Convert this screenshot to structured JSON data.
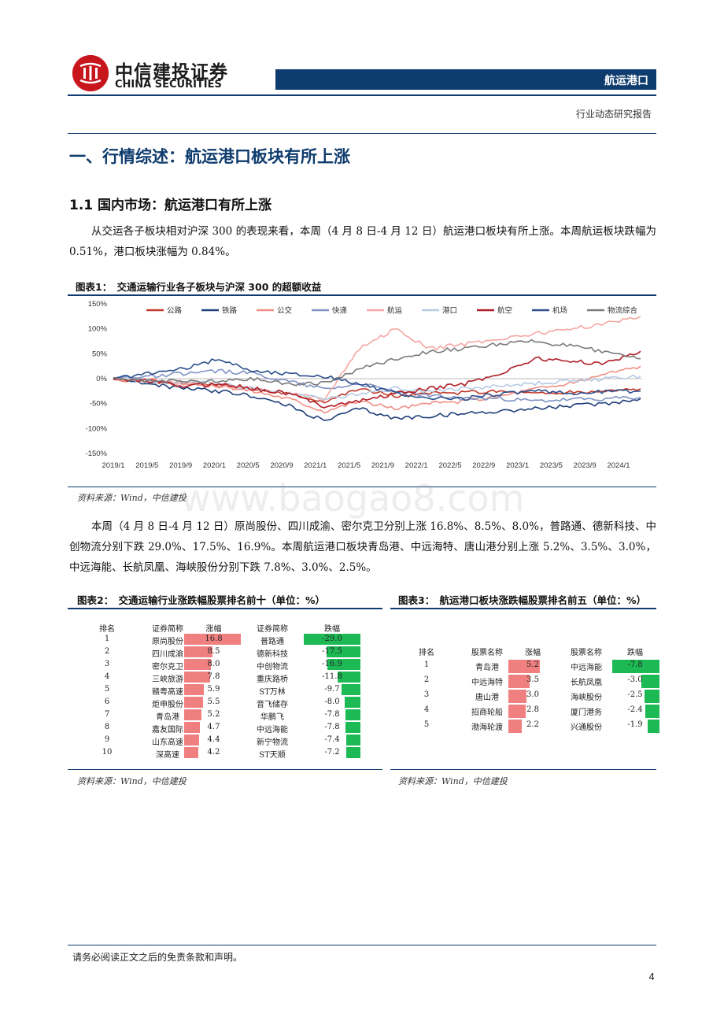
{
  "header": {
    "logo_cn": "中信建投证券",
    "logo_en": "CHINA SECURITIES",
    "sector": "航运港口",
    "report_type": "行业动态研究报告"
  },
  "section": {
    "h1": "一、行情综述：航运港口板块有所上涨",
    "h2": "1.1 国内市场：航运港口有所上涨",
    "para1": "从交运各子板块相对沪深 300 的表现来看，本周（4 月 8 日-4 月 12 日）航运港口板块有所上涨。本周航运板块跌幅为 0.51%，港口板块涨幅为 0.84%。",
    "para2": "本周（4 月 8 日-4 月 12 日）原尚股份、四川成渝、密尔克卫分别上涨 16.8%、8.5%、8.0%，普路通、德新科技、中创物流分别下跌 29.0%、17.5%、16.9%。本周航运港口板块青岛港、中远海特、唐山港分别上涨 5.2%、3.5%、3.0%，中远海能、长航凤凰、海峡股份分别下跌 7.8%、3.0%、2.5%。"
  },
  "fig1": {
    "title": "图表1：　交通运输行业各子板块与沪深 300 的超额收益",
    "source": "资料来源：Wind，中信建投"
  },
  "fig2": {
    "title": "图表2：　交通运输行业涨跌幅股票排名前十（单位：%）",
    "source": "资料来源：Wind，中信建投",
    "headers": [
      "排名",
      "证券简称",
      "涨幅",
      "证券简称",
      "跌幅"
    ],
    "rows": [
      {
        "rank": "1",
        "up_name": "原尚股份",
        "up": "16.8",
        "down_name": "普路通",
        "down": "-29.0"
      },
      {
        "rank": "2",
        "up_name": "四川成渝",
        "up": "8.5",
        "down_name": "德新科技",
        "down": "-17.5"
      },
      {
        "rank": "3",
        "up_name": "密尔克卫",
        "up": "8.0",
        "down_name": "中创物流",
        "down": "-16.9"
      },
      {
        "rank": "4",
        "up_name": "三峡旅游",
        "up": "7.8",
        "down_name": "重庆路桥",
        "down": "-11.8"
      },
      {
        "rank": "5",
        "up_name": "赣粤高速",
        "up": "5.9",
        "down_name": "ST万林",
        "down": "-9.7"
      },
      {
        "rank": "6",
        "up_name": "炬申股份",
        "up": "5.5",
        "down_name": "音飞储存",
        "down": "-8.0"
      },
      {
        "rank": "7",
        "up_name": "青岛港",
        "up": "5.2",
        "down_name": "华鹏飞",
        "down": "-7.8"
      },
      {
        "rank": "8",
        "up_name": "嘉友国际",
        "up": "4.7",
        "down_name": "中远海能",
        "down": "-7.8"
      },
      {
        "rank": "9",
        "up_name": "山东高速",
        "up": "4.4",
        "down_name": "新宁物流",
        "down": "-7.4"
      },
      {
        "rank": "10",
        "up_name": "深高速",
        "up": "4.2",
        "down_name": "ST天顺",
        "down": "-7.2"
      }
    ]
  },
  "fig3": {
    "title": "图表3：　航运港口板块涨跌幅股票排名前五（单位：%）",
    "source": "资料来源：Wind，中信建投",
    "headers": [
      "排名",
      "股票名称",
      "涨幅",
      "股票名称",
      "跌幅"
    ],
    "rows": [
      {
        "rank": "1",
        "up_name": "青岛港",
        "up": "5.2",
        "down_name": "中远海能",
        "down": "-7.8"
      },
      {
        "rank": "2",
        "up_name": "中远海特",
        "up": "3.5",
        "down_name": "长航凤凰",
        "down": "-3.0"
      },
      {
        "rank": "3",
        "up_name": "唐山港",
        "up": "3.0",
        "down_name": "海峡股份",
        "down": "-2.5"
      },
      {
        "rank": "4",
        "up_name": "招商轮船",
        "up": "2.8",
        "down_name": "厦门港务",
        "down": "-2.4"
      },
      {
        "rank": "5",
        "up_name": "渤海轮渡",
        "up": "2.2",
        "down_name": "兴通股份",
        "down": "-1.9"
      }
    ]
  },
  "colors": {
    "navy": "#0f3c6e",
    "red_bar": "#f08080",
    "green_bar": "#1db954",
    "logo_red": "#c8161d"
  },
  "footer": {
    "disclaimer": "请务必阅读正文之后的免责条款和声明。",
    "page": "4"
  },
  "watermark": "www.baogao8.com",
  "chart_data": {
    "type": "line",
    "title": "",
    "xlabel": "",
    "ylabel": "",
    "ylim": [
      -150,
      150
    ],
    "yticks": [
      "150%",
      "100%",
      "50%",
      "0%",
      "-50%",
      "-100%",
      "-150%"
    ],
    "xticks": [
      "2019/1",
      "2019/5",
      "2019/9",
      "2020/1",
      "2020/5",
      "2020/9",
      "2021/1",
      "2021/5",
      "2021/9",
      "2022/1",
      "2022/5",
      "2022/9",
      "2023/1",
      "2023/5",
      "2023/9",
      "2024/1"
    ],
    "legend_position": "top",
    "series": [
      {
        "name": "公路",
        "color": "#c0392b",
        "values": [
          0,
          -5,
          -10,
          -12,
          -20,
          -30,
          -45,
          -20,
          -35,
          -30,
          -28,
          -25,
          -30,
          -28,
          -25,
          -20
        ]
      },
      {
        "name": "铁路",
        "color": "#1f3f7a",
        "values": [
          0,
          -10,
          -20,
          -25,
          -35,
          -55,
          -85,
          -60,
          -80,
          -75,
          -70,
          -65,
          -60,
          -55,
          -50,
          -40
        ]
      },
      {
        "name": "公交",
        "color": "#ef8f84",
        "values": [
          0,
          -3,
          -8,
          -15,
          -25,
          -40,
          -65,
          -45,
          -60,
          -50,
          -45,
          -35,
          -20,
          -10,
          10,
          25
        ]
      },
      {
        "name": "快递",
        "color": "#7f93c5",
        "values": [
          0,
          5,
          10,
          15,
          10,
          -5,
          -20,
          -10,
          -25,
          -35,
          -40,
          -40,
          -45,
          -42,
          -40,
          -38
        ]
      },
      {
        "name": "航运",
        "color": "#f4a7a3",
        "values": [
          0,
          -5,
          -10,
          -15,
          -20,
          -30,
          -40,
          60,
          100,
          60,
          70,
          80,
          90,
          100,
          110,
          125
        ]
      },
      {
        "name": "港口",
        "color": "#b7cbe3",
        "values": [
          0,
          -5,
          -8,
          -10,
          -20,
          -30,
          -40,
          -30,
          -20,
          -25,
          -20,
          -15,
          -10,
          -5,
          0,
          5
        ]
      },
      {
        "name": "航空",
        "color": "#b01c25",
        "values": [
          0,
          -5,
          -15,
          -10,
          -20,
          -30,
          -55,
          -45,
          -30,
          -20,
          -10,
          10,
          40,
          35,
          30,
          55
        ]
      },
      {
        "name": "机场",
        "color": "#2c4f8c",
        "values": [
          0,
          10,
          20,
          40,
          15,
          10,
          5,
          -10,
          -30,
          -40,
          -40,
          -30,
          -25,
          -30,
          -25,
          -25
        ]
      },
      {
        "name": "物流综合",
        "color": "#7a7a7a",
        "values": [
          0,
          -5,
          -5,
          -5,
          0,
          -10,
          -10,
          20,
          40,
          55,
          60,
          70,
          75,
          65,
          55,
          40
        ]
      }
    ]
  }
}
